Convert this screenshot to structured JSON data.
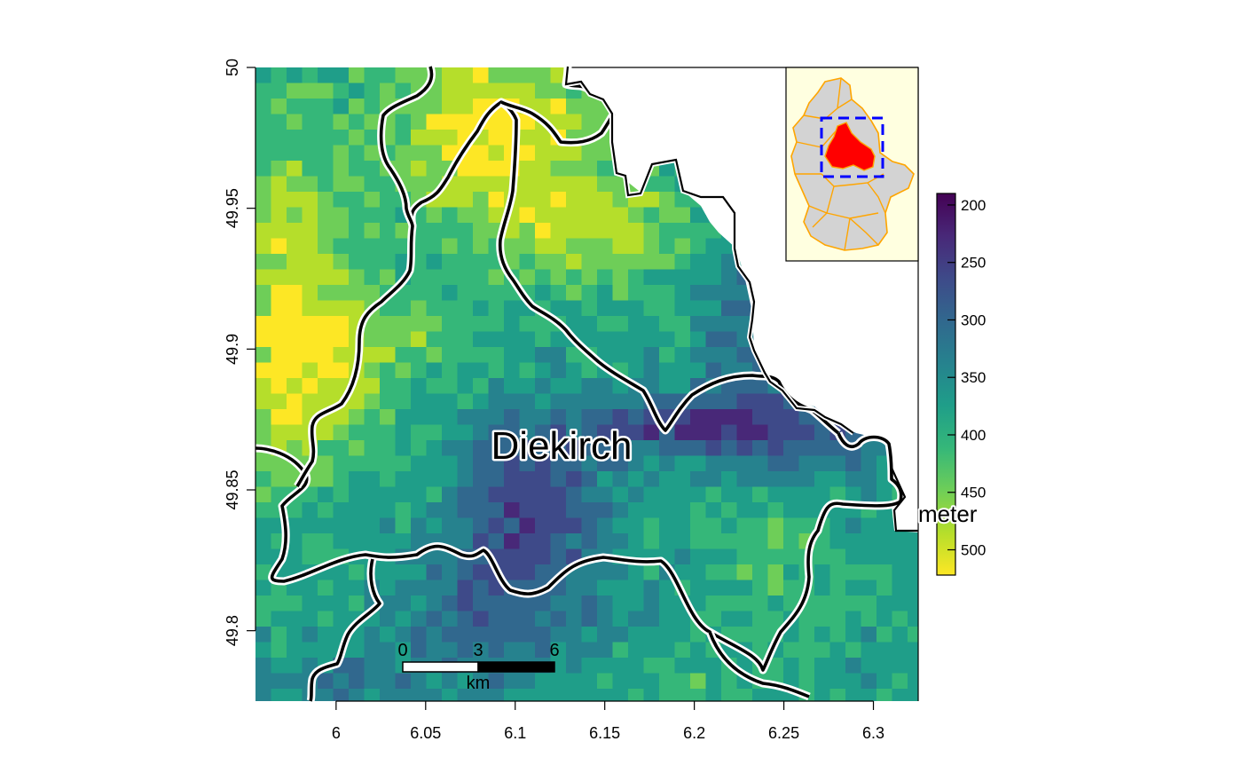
{
  "map": {
    "place_name": "Diekirch",
    "x_ticks": [
      "6",
      "6.05",
      "6.1",
      "6.15",
      "6.2",
      "6.25",
      "6.3"
    ],
    "y_ticks": [
      "49.8",
      "49.85",
      "49.9",
      "49.95",
      "50"
    ],
    "x_range": [
      5.955,
      6.325
    ],
    "y_range": [
      49.775,
      50.0
    ],
    "legend": {
      "title": "meter",
      "ticks": [
        "200",
        "250",
        "300",
        "350",
        "400",
        "450",
        "500"
      ],
      "range": [
        190,
        522
      ]
    },
    "scale_bar": {
      "labels": [
        "0",
        "3",
        "6"
      ],
      "unit": "km"
    },
    "colors": {
      "palette_viridis": [
        "#440154",
        "#482878",
        "#3e4a89",
        "#31688e",
        "#26828e",
        "#1f9e89",
        "#35b779",
        "#6ece58",
        "#b5de2b",
        "#fde725"
      ],
      "inset_background": "#ffffe0",
      "inset_fill": "#d3d3d3",
      "inset_boundary": "#ffa500",
      "highlight": "#ff0000",
      "bbox": "#0000ff"
    }
  }
}
